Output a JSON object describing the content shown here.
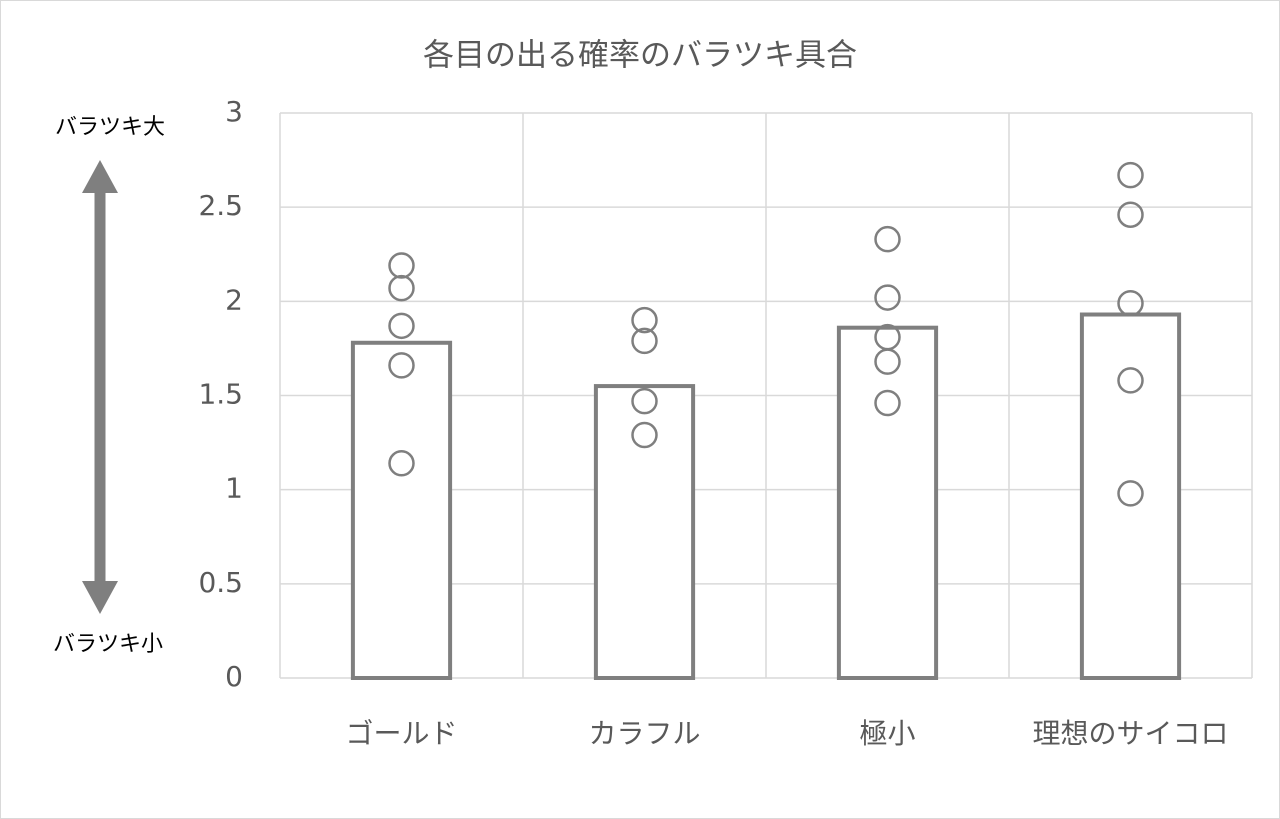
{
  "chart_data": {
    "type": "bar",
    "title": "各目の出る確率のバラツキ具合",
    "categories": [
      "ゴールド",
      "カラフル",
      "極小",
      "理想のサイコロ"
    ],
    "values": [
      1.78,
      1.55,
      1.86,
      1.93
    ],
    "points": [
      [
        2.19,
        2.07,
        1.87,
        1.66,
        1.14
      ],
      [
        1.9,
        1.79,
        1.47,
        1.29
      ],
      [
        2.33,
        2.02,
        1.81,
        1.68,
        1.46
      ],
      [
        2.67,
        2.46,
        1.99,
        1.58,
        0.98
      ]
    ],
    "color": "#7f7f7f",
    "ylim": [
      0,
      3
    ],
    "yticks": [
      0,
      0.5,
      1,
      1.5,
      2,
      2.5,
      3
    ],
    "grid": true,
    "annotations": [
      "バラツキ大",
      "バラツキ小"
    ]
  }
}
